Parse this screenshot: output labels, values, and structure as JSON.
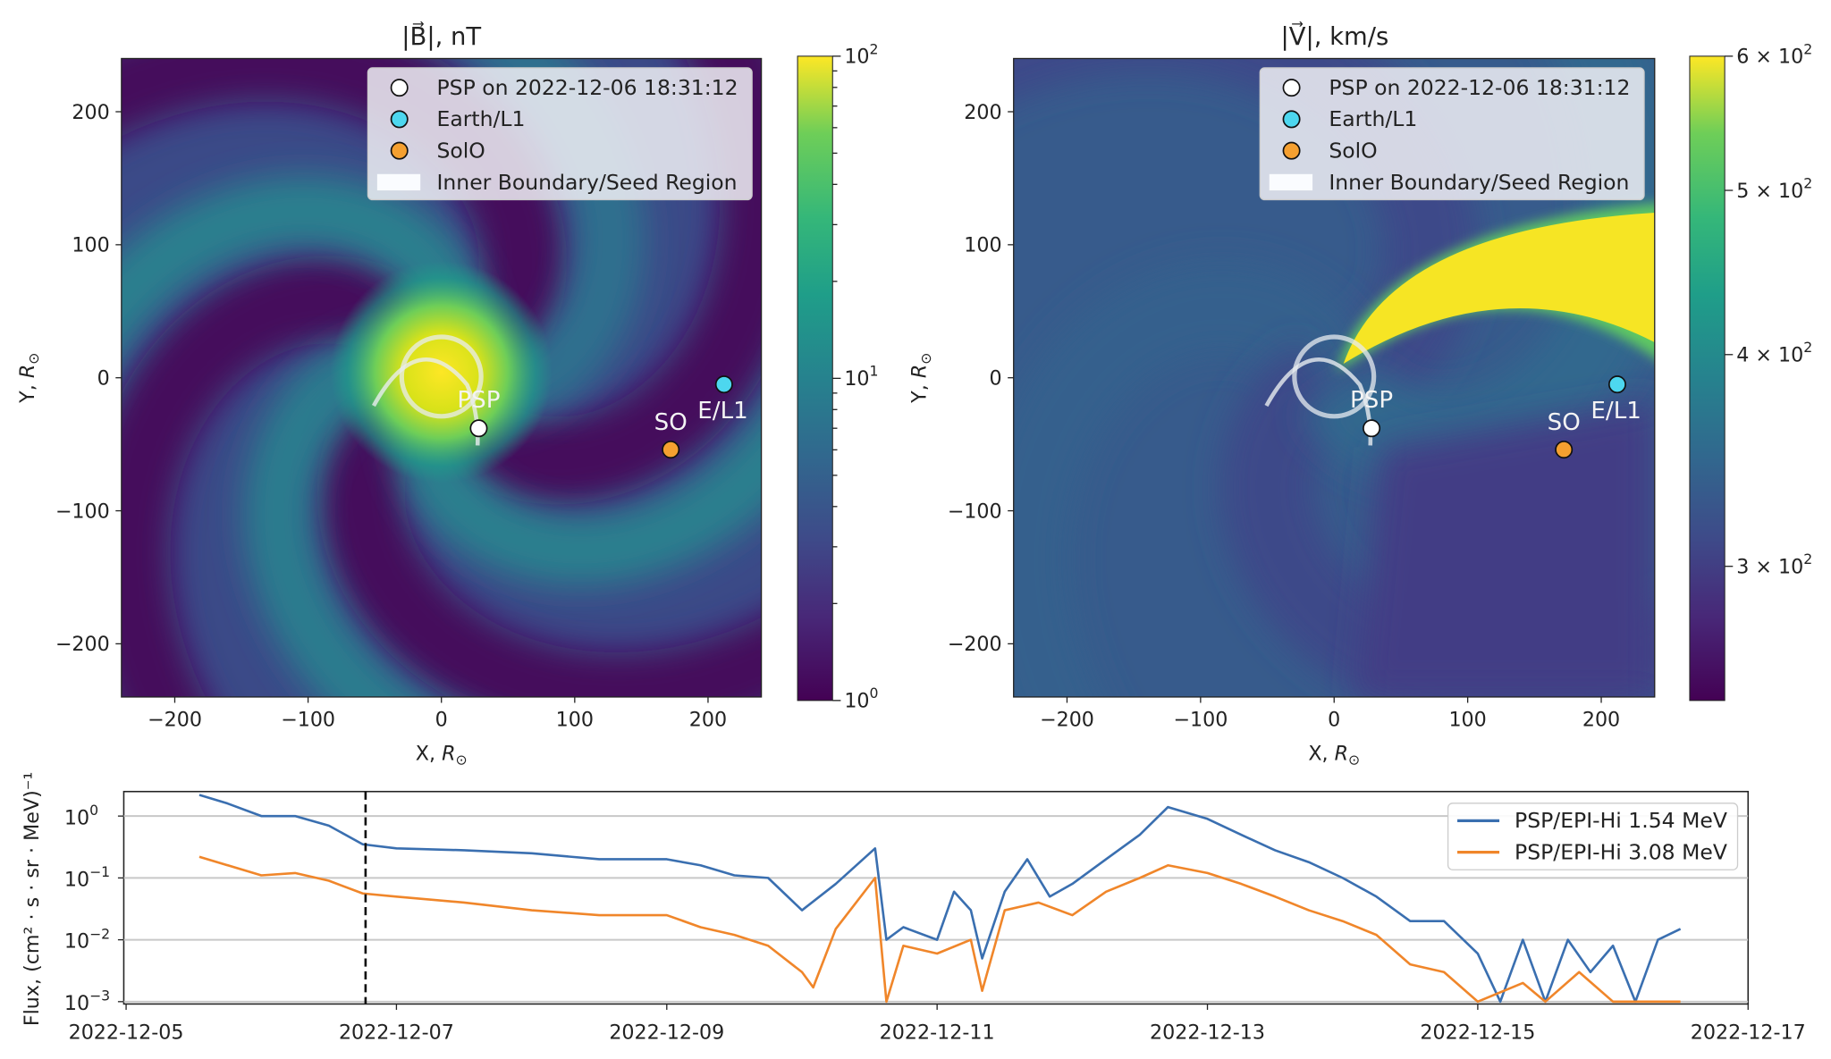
{
  "panels": [
    {
      "id": "b-field",
      "title": "|B⃗|, nT",
      "xlabel": {
        "prefix": "X, ",
        "var": "R",
        "sub": "⊙"
      },
      "ylabel": {
        "prefix": "Y, ",
        "var": "R",
        "sub": "⊙"
      },
      "xlim": [
        -240,
        240
      ],
      "ylim": [
        -240,
        240
      ],
      "xticks": [
        -200,
        -100,
        0,
        100,
        200
      ],
      "yticks": [
        -200,
        -100,
        0,
        100,
        200
      ],
      "colorbar": {
        "scale": "log",
        "range": [
          1,
          100
        ],
        "colormap": "viridis",
        "ticks": [
          {
            "value": 100,
            "base": "10",
            "exp": "2"
          },
          {
            "value": 10,
            "base": "10",
            "exp": "1"
          },
          {
            "value": 1,
            "base": "10",
            "exp": "0"
          }
        ]
      },
      "colormap": "viridis"
    },
    {
      "id": "v-field",
      "title": "|V⃗|, km/s",
      "xlabel": {
        "prefix": "X, ",
        "var": "R",
        "sub": "⊙"
      },
      "ylabel": {
        "prefix": "Y, ",
        "var": "R",
        "sub": "⊙"
      },
      "xlim": [
        -240,
        240
      ],
      "ylim": [
        -240,
        240
      ],
      "xticks": [
        -200,
        -100,
        0,
        100,
        200
      ],
      "yticks": [
        -200,
        -100,
        0,
        100,
        200
      ],
      "colorbar": {
        "scale": "log",
        "range": [
          250,
          600
        ],
        "colormap": "viridis",
        "ticks": [
          {
            "value": 600,
            "base": "6 × 10",
            "exp": "2"
          },
          {
            "value": 500,
            "base": "5 × 10",
            "exp": "2"
          },
          {
            "value": 400,
            "base": "4 × 10",
            "exp": "2"
          },
          {
            "value": 300,
            "base": "3 × 10",
            "exp": "2"
          }
        ]
      },
      "colormap": "viridis"
    }
  ],
  "map_legend": [
    {
      "label": "PSP on 2022-12-06 18:31:12",
      "color": "#ffffff",
      "marker": "circle"
    },
    {
      "label": "Earth/L1",
      "color": "#4dd7ef",
      "marker": "circle"
    },
    {
      "label": "SolO",
      "color": "#f5a030",
      "marker": "circle"
    },
    {
      "label": "Inner Boundary/Seed Region",
      "color": "#e8ecf0",
      "marker": "patch"
    }
  ],
  "bodies": [
    {
      "name": "PSP",
      "label": "PSP",
      "x": 28,
      "y": -38,
      "color": "#ffffff"
    },
    {
      "name": "Earth/L1",
      "label": "E/L1",
      "x": 212,
      "y": -5,
      "color": "#4dd7ef"
    },
    {
      "name": "SolO",
      "label": "SO",
      "x": 172,
      "y": -54,
      "color": "#f5a030"
    }
  ],
  "chart_data": {
    "type": "line",
    "title": "",
    "xlabel": "",
    "ylabel": "Flux, (cm² · s · sr · MeV)⁻¹",
    "yscale": "log",
    "ylim": [
      0.001,
      2.5
    ],
    "xlim": [
      "2022-12-05T00:00",
      "2022-12-17T00:00"
    ],
    "xticks": [
      "2022-12-05",
      "2022-12-07",
      "2022-12-09",
      "2022-12-11",
      "2022-12-13",
      "2022-12-15",
      "2022-12-17"
    ],
    "yticks": [
      {
        "value": 1,
        "base": "10",
        "exp": "0"
      },
      {
        "value": 0.1,
        "base": "10",
        "exp": "−1"
      },
      {
        "value": 0.01,
        "base": "10",
        "exp": "−2"
      },
      {
        "value": 0.001,
        "base": "10",
        "exp": "−3"
      }
    ],
    "grid": "horizontal",
    "legend_position": "top-right",
    "marker_time": "2022-12-06T18:31:12",
    "series": [
      {
        "name": "PSP/EPI-Hi 1.54 MeV",
        "color": "#3a6fb0",
        "points": [
          [
            "2022-12-05T13:00",
            2.2
          ],
          [
            "2022-12-05T18:00",
            1.6
          ],
          [
            "2022-12-06T00:00",
            1.0
          ],
          [
            "2022-12-06T06:00",
            1.0
          ],
          [
            "2022-12-06T12:00",
            0.7
          ],
          [
            "2022-12-06T18:00",
            0.35
          ],
          [
            "2022-12-07T00:00",
            0.3
          ],
          [
            "2022-12-07T12:00",
            0.28
          ],
          [
            "2022-12-08T00:00",
            0.25
          ],
          [
            "2022-12-08T12:00",
            0.2
          ],
          [
            "2022-12-09T00:00",
            0.2
          ],
          [
            "2022-12-09T06:00",
            0.16
          ],
          [
            "2022-12-09T12:00",
            0.11
          ],
          [
            "2022-12-09T18:00",
            0.1
          ],
          [
            "2022-12-10T00:00",
            0.03
          ],
          [
            "2022-12-10T06:00",
            0.08
          ],
          [
            "2022-12-10T13:00",
            0.3
          ],
          [
            "2022-12-10T15:00",
            0.01
          ],
          [
            "2022-12-10T18:00",
            0.016
          ],
          [
            "2022-12-11T00:00",
            0.01
          ],
          [
            "2022-12-11T03:00",
            0.06
          ],
          [
            "2022-12-11T06:00",
            0.03
          ],
          [
            "2022-12-11T08:00",
            0.005
          ],
          [
            "2022-12-11T12:00",
            0.06
          ],
          [
            "2022-12-11T16:00",
            0.2
          ],
          [
            "2022-12-11T20:00",
            0.05
          ],
          [
            "2022-12-12T00:00",
            0.08
          ],
          [
            "2022-12-12T06:00",
            0.2
          ],
          [
            "2022-12-12T12:00",
            0.5
          ],
          [
            "2022-12-12T17:00",
            1.4
          ],
          [
            "2022-12-13T00:00",
            0.9
          ],
          [
            "2022-12-13T06:00",
            0.5
          ],
          [
            "2022-12-13T12:00",
            0.28
          ],
          [
            "2022-12-13T18:00",
            0.18
          ],
          [
            "2022-12-14T00:00",
            0.1
          ],
          [
            "2022-12-14T06:00",
            0.05
          ],
          [
            "2022-12-14T12:00",
            0.02
          ],
          [
            "2022-12-14T18:00",
            0.02
          ],
          [
            "2022-12-15T00:00",
            0.006
          ],
          [
            "2022-12-15T04:00",
            0.001
          ],
          [
            "2022-12-15T08:00",
            0.01
          ],
          [
            "2022-12-15T12:00",
            0.001
          ],
          [
            "2022-12-15T16:00",
            0.01
          ],
          [
            "2022-12-15T20:00",
            0.003
          ],
          [
            "2022-12-16T00:00",
            0.008
          ],
          [
            "2022-12-16T04:00",
            0.001
          ],
          [
            "2022-12-16T08:00",
            0.01
          ],
          [
            "2022-12-16T12:00",
            0.015
          ]
        ]
      },
      {
        "name": "PSP/EPI-Hi 3.08 MeV",
        "color": "#f0862a",
        "points": [
          [
            "2022-12-05T13:00",
            0.22
          ],
          [
            "2022-12-06T00:00",
            0.11
          ],
          [
            "2022-12-06T06:00",
            0.12
          ],
          [
            "2022-12-06T12:00",
            0.09
          ],
          [
            "2022-12-06T18:00",
            0.056
          ],
          [
            "2022-12-07T00:00",
            0.05
          ],
          [
            "2022-12-07T12:00",
            0.04
          ],
          [
            "2022-12-08T00:00",
            0.03
          ],
          [
            "2022-12-08T12:00",
            0.025
          ],
          [
            "2022-12-09T00:00",
            0.025
          ],
          [
            "2022-12-09T06:00",
            0.016
          ],
          [
            "2022-12-09T12:00",
            0.012
          ],
          [
            "2022-12-09T18:00",
            0.008
          ],
          [
            "2022-12-10T00:00",
            0.003
          ],
          [
            "2022-12-10T02:00",
            0.0017
          ],
          [
            "2022-12-10T06:00",
            0.015
          ],
          [
            "2022-12-10T13:00",
            0.1
          ],
          [
            "2022-12-10T15:00",
            0.001
          ],
          [
            "2022-12-10T18:00",
            0.008
          ],
          [
            "2022-12-11T00:00",
            0.006
          ],
          [
            "2022-12-11T06:00",
            0.01
          ],
          [
            "2022-12-11T08:00",
            0.0015
          ],
          [
            "2022-12-11T12:00",
            0.03
          ],
          [
            "2022-12-11T18:00",
            0.04
          ],
          [
            "2022-12-12T00:00",
            0.025
          ],
          [
            "2022-12-12T06:00",
            0.06
          ],
          [
            "2022-12-12T12:00",
            0.1
          ],
          [
            "2022-12-12T17:00",
            0.16
          ],
          [
            "2022-12-13T00:00",
            0.12
          ],
          [
            "2022-12-13T06:00",
            0.08
          ],
          [
            "2022-12-13T12:00",
            0.05
          ],
          [
            "2022-12-13T18:00",
            0.03
          ],
          [
            "2022-12-14T00:00",
            0.02
          ],
          [
            "2022-12-14T06:00",
            0.012
          ],
          [
            "2022-12-14T12:00",
            0.004
          ],
          [
            "2022-12-14T18:00",
            0.003
          ],
          [
            "2022-12-15T00:00",
            0.001
          ],
          [
            "2022-12-15T08:00",
            0.002
          ],
          [
            "2022-12-15T12:00",
            0.001
          ],
          [
            "2022-12-15T18:00",
            0.003
          ],
          [
            "2022-12-16T00:00",
            0.001
          ],
          [
            "2022-12-16T12:00",
            0.001
          ]
        ]
      }
    ]
  }
}
